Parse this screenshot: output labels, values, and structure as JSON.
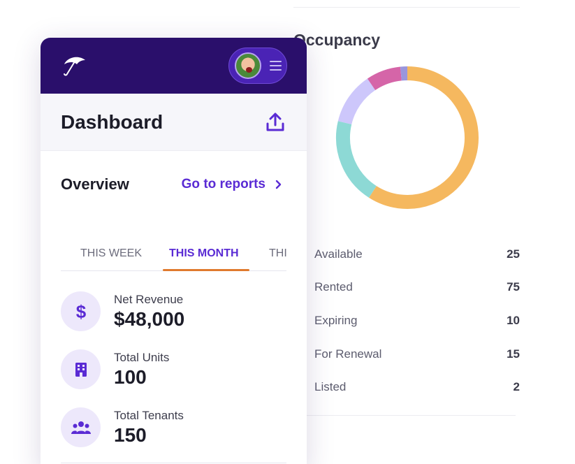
{
  "occupancy": {
    "title": "Occupancy",
    "segments": [
      {
        "name": "Rented",
        "value": 75,
        "color": "#f5b85f"
      },
      {
        "name": "Available",
        "value": 25,
        "color": "#8dd9d5"
      },
      {
        "name": "For Renewal",
        "value": 15,
        "color": "#cdc7fb"
      },
      {
        "name": "Expiring",
        "value": 10,
        "color": "#d565a8"
      },
      {
        "name": "Listed",
        "value": 2,
        "color": "#9a96dc"
      }
    ],
    "legend": [
      {
        "label": "Available",
        "value": "25",
        "color": "#8dd9d5"
      },
      {
        "label": "Rented",
        "value": "75",
        "color": "#f5b85f"
      },
      {
        "label": "Expiring",
        "value": "10",
        "color": "#d565a8"
      },
      {
        "label": "For Renewal",
        "value": "15",
        "color": "#cdc7fb"
      },
      {
        "label": "Listed",
        "value": "2",
        "color": "#9a96dc"
      }
    ]
  },
  "header": {
    "logo_icon": "umbrella-icon",
    "menu_icon": "hamburger-icon"
  },
  "page": {
    "title": "Dashboard",
    "upload_icon": "upload-icon"
  },
  "overview": {
    "title": "Overview",
    "reports_link": "Go to reports"
  },
  "tabs": [
    {
      "label": "THIS WEEK",
      "active": false
    },
    {
      "label": "THIS MONTH",
      "active": true
    },
    {
      "label": "THI",
      "active": false
    }
  ],
  "stats": [
    {
      "label": "Net Revenue",
      "value": "$48,000",
      "icon": "dollar-icon"
    },
    {
      "label": "Total Units",
      "value": "100",
      "icon": "building-icon"
    },
    {
      "label": "Total Tenants",
      "value": "150",
      "icon": "people-icon"
    }
  ],
  "colors": {
    "header_bg": "#2a0f6b",
    "accent": "#5a2bd4",
    "tab_underline": "#e07a2e"
  }
}
